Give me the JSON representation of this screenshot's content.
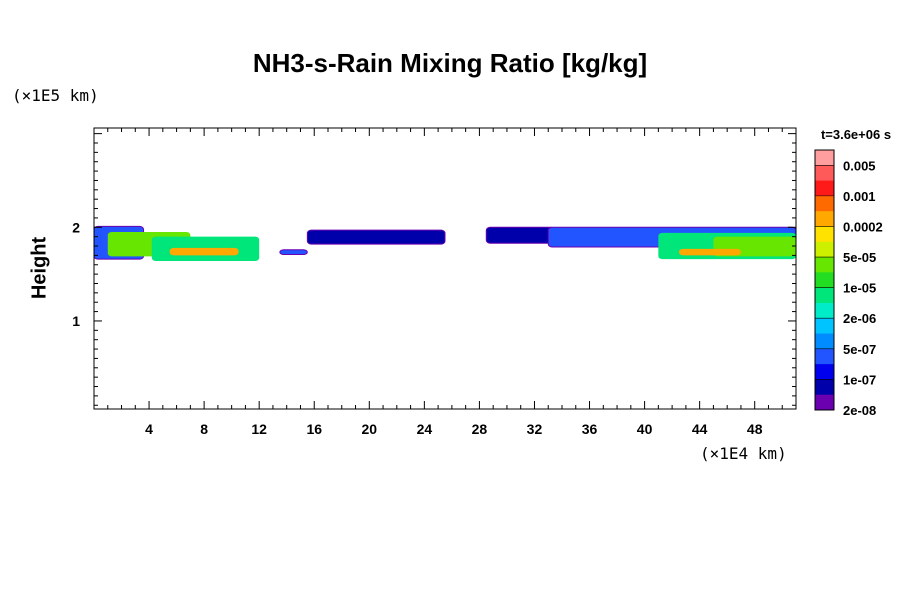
{
  "chart_data": {
    "type": "heatmap",
    "title": "NH3-s-Rain Mixing Ratio [kg/kg]",
    "xlabel": "",
    "ylabel": "Height",
    "x_unit": "(×1E4 km)",
    "y_unit": "(×1E5 km)",
    "time_label": "t=3.6e+06 s",
    "xlim": [
      0,
      51
    ],
    "ylim": [
      0.06,
      3.06
    ],
    "x_ticks": [
      "4",
      "8",
      "12",
      "16",
      "20",
      "24",
      "28",
      "32",
      "36",
      "40",
      "44",
      "48"
    ],
    "x_tick_values": [
      4,
      8,
      12,
      16,
      20,
      24,
      28,
      32,
      36,
      40,
      44,
      48
    ],
    "y_ticks": [
      "1",
      "2"
    ],
    "y_tick_values": [
      1,
      2
    ],
    "colorbar": {
      "labels": [
        "0.005",
        "0.001",
        "0.0002",
        "5e-05",
        "1e-05",
        "2e-06",
        "5e-07",
        "1e-07",
        "2e-08"
      ],
      "colors": [
        "#ff9e9e",
        "#ff5a5a",
        "#ff1a1a",
        "#ff6a00",
        "#ffa800",
        "#ffe200",
        "#ccf000",
        "#66e600",
        "#22dd22",
        "#00e67a",
        "#00ecc8",
        "#00c4ff",
        "#008cff",
        "#2255ff",
        "#0000ee",
        "#0000aa",
        "#6a00b0"
      ]
    },
    "regions": [
      {
        "x": [
          0.0,
          3.6
        ],
        "bottom": 1.66,
        "top": 2.01,
        "level": "1e-07"
      },
      {
        "x": [
          1.0,
          7.0
        ],
        "bottom": 1.69,
        "top": 1.95,
        "level": "1e-05"
      },
      {
        "x": [
          4.2,
          12.0
        ],
        "bottom": 1.64,
        "top": 1.9,
        "level": "2e-06"
      },
      {
        "x": [
          5.5,
          10.5
        ],
        "bottom": 1.7,
        "top": 1.78,
        "level": "0.0002"
      },
      {
        "x": [
          13.5,
          15.5
        ],
        "bottom": 1.71,
        "top": 1.76,
        "level": "1e-07"
      },
      {
        "x": [
          15.5,
          25.5
        ],
        "bottom": 1.82,
        "top": 1.97,
        "level": "2e-08"
      },
      {
        "x": [
          28.5,
          33.5
        ],
        "bottom": 1.83,
        "top": 2.0,
        "level": "2e-08"
      },
      {
        "x": [
          33.0,
          51.0
        ],
        "bottom": 1.79,
        "top": 2.0,
        "level": "1e-07"
      },
      {
        "x": [
          41.0,
          51.0
        ],
        "bottom": 1.66,
        "top": 1.94,
        "level": "2e-06"
      },
      {
        "x": [
          45.0,
          51.0
        ],
        "bottom": 1.69,
        "top": 1.9,
        "level": "1e-05"
      },
      {
        "x": [
          42.5,
          47.0
        ],
        "bottom": 1.7,
        "top": 1.77,
        "level": "0.0002"
      }
    ]
  }
}
